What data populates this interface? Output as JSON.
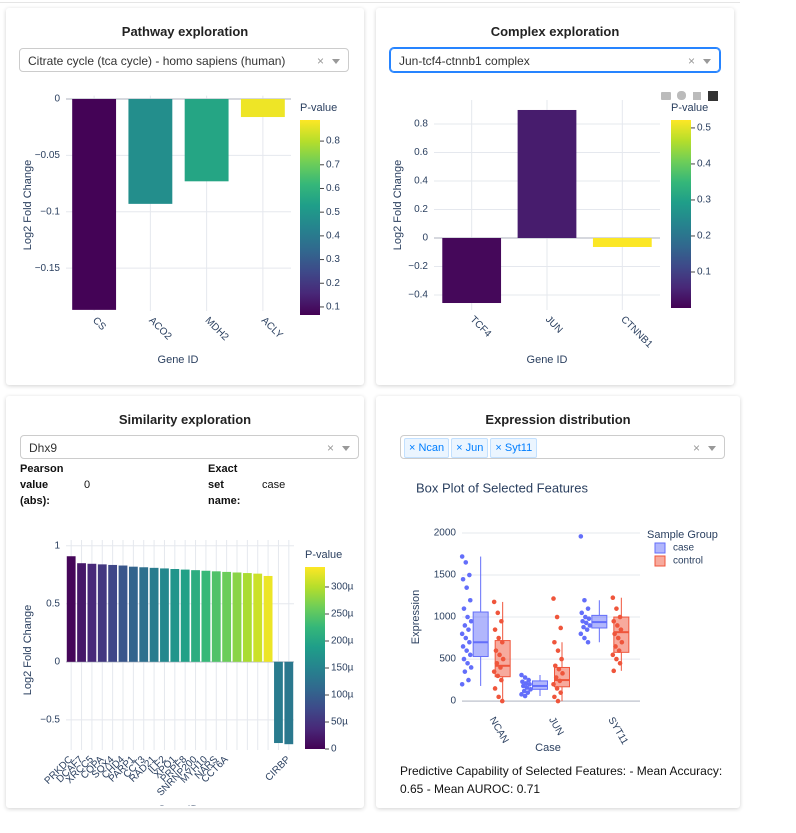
{
  "ui": {
    "panels": [
      {
        "title": "Pathway exploration",
        "dropdown": "Citrate cycle (tca cycle) - homo sapiens (human)"
      },
      {
        "title": "Complex exploration",
        "dropdown": "Jun-tcf4-ctnnb1 complex"
      },
      {
        "title": "Similarity exploration",
        "dropdown": "Dhx9",
        "fields": [
          {
            "label": "Pearson value (abs):",
            "value": 0
          },
          {
            "label": "Exact set name:",
            "value": "case"
          }
        ]
      },
      {
        "title": "Expression distribution",
        "tags": [
          "Ncan",
          "Jun",
          "Syt11"
        ],
        "footer": "Predictive Capability of Selected Features: - Mean Accuracy: 0.65 - Mean AUROC: 0.71"
      }
    ]
  },
  "chart_data": [
    {
      "type": "bar",
      "xlabel": "Gene ID",
      "ylabel": "Log2 Fold Change",
      "categories": [
        "CS",
        "ACO2",
        "MDH2",
        "ACLY"
      ],
      "values": [
        -0.187,
        -0.093,
        -0.073,
        -0.016
      ],
      "pvalues": [
        0.07,
        0.47,
        0.55,
        0.87
      ],
      "ylim": [
        -0.188,
        0.003
      ],
      "yticks": [
        0,
        {
          "value": -0.05,
          "label": "−0.05"
        },
        {
          "value": -0.1,
          "label": "−0.1"
        },
        {
          "value": -0.15,
          "label": "−0.15"
        }
      ],
      "grid": true,
      "colorscale": "Viridis",
      "colorbar": {
        "title": "P-value",
        "clim": [
          0.066,
          0.889
        ],
        "ticks": [
          0.1,
          0.2,
          0.3,
          0.4,
          0.5,
          0.6,
          0.7,
          0.8
        ]
      }
    },
    {
      "type": "bar",
      "xlabel": "Gene ID",
      "ylabel": "Log2 Fold Change",
      "categories": [
        "TCF4",
        "JUN",
        "CTNNB1"
      ],
      "values": [
        -0.456,
        0.898,
        -0.063
      ],
      "pvalues": [
        0.01,
        0.04,
        0.52
      ],
      "ylim": [
        -0.505,
        0.968
      ],
      "yticks": [
        {
          "value": -0.4,
          "label": "−0.4"
        },
        {
          "value": -0.2,
          "label": "−0.2"
        },
        0,
        0.2,
        0.4,
        0.6,
        0.8
      ],
      "grid": true,
      "colorscale": "Viridis",
      "colorbar": {
        "title": "P-value",
        "clim": [
          0,
          0.522
        ],
        "ticks": [
          0.1,
          0.2,
          0.3,
          0.4,
          0.5
        ]
      }
    },
    {
      "type": "bar",
      "xlabel": "Gene ID",
      "ylabel": "Log2 Fold Change",
      "categories": [
        "PRKDC",
        "DCAF7",
        "XRCC5",
        "COPA",
        "SOX4",
        "CHD4",
        "PARP1",
        "CCT3",
        "RAD21",
        "ILF2",
        "XPO1",
        "PRPF8",
        "SNRNP200",
        "MYH10",
        "NARS",
        "CCT6A",
        null,
        null,
        null,
        null,
        null,
        "CIRBP"
      ],
      "values": [
        0.91,
        0.85,
        0.845,
        0.84,
        0.835,
        0.83,
        0.82,
        0.815,
        0.81,
        0.805,
        0.8,
        0.795,
        0.79,
        0.785,
        0.78,
        0.775,
        0.77,
        0.765,
        0.76,
        0.74,
        -0.7,
        -0.71
      ],
      "pvalues": [
        5e-06,
        2.2e-05,
        3.9e-05,
        5.6e-05,
        7.3e-05,
        9e-05,
        0.000107,
        0.000124,
        0.000141,
        0.000158,
        0.000175,
        0.000192,
        0.000209,
        0.000226,
        0.000243,
        0.00026,
        0.000277,
        0.000294,
        0.000311,
        0.000328,
        0.00014,
        0.000135
      ],
      "ylim": [
        -0.76,
        1.05
      ],
      "yticks": [
        {
          "value": -0.5,
          "label": "−0.5"
        },
        0,
        0.5,
        1
      ],
      "grid": true,
      "colorscale": "Viridis",
      "colorbar": {
        "title": "P-value",
        "clim": [
          0,
          0.000337
        ],
        "ticks": [
          0,
          {
            "value": 5e-05,
            "label": "50µ"
          },
          {
            "value": 0.0001,
            "label": "100µ"
          },
          {
            "value": 0.00015,
            "label": "150µ"
          },
          {
            "value": 0.0002,
            "label": "200µ"
          },
          {
            "value": 0.00025,
            "label": "250µ"
          },
          {
            "value": 0.0003,
            "label": "300µ"
          }
        ]
      }
    },
    {
      "type": "box",
      "title": "Box Plot of Selected Features",
      "xlabel": "Case",
      "ylabel": "Expression",
      "legend_title": "Sample Group",
      "categories": [
        "NCAN",
        "JUN",
        "SYT11"
      ],
      "ylim": [
        -130,
        2155
      ],
      "yticks": [
        0,
        500,
        1000,
        1500,
        2000
      ],
      "grid": true,
      "series": [
        {
          "name": "case",
          "color": "#636efa",
          "lowerfence": [
            180,
            60,
            700
          ],
          "q1": [
            530,
            140,
            870
          ],
          "median": [
            700,
            180,
            940
          ],
          "q3": [
            1060,
            240,
            1020
          ],
          "upperfence": [
            1720,
            310,
            1200
          ],
          "points": [
            [
              1720,
              1650,
              1500,
              1450,
              1350,
              1200,
              1100,
              1000,
              950,
              900,
              850,
              800,
              750,
              700,
              650,
              600,
              550,
              500,
              450,
              400,
              350,
              250,
              200
            ],
            [
              310,
              280,
              250,
              230,
              210,
              200,
              180,
              160,
              140,
              120,
              100,
              80,
              60
            ],
            [
              1960,
              1200,
              1100,
              1050,
              1000,
              980,
              950,
              930,
              900,
              880,
              850,
              800,
              750,
              700
            ]
          ]
        },
        {
          "name": "control",
          "color": "#ef553b",
          "lowerfence": [
            0,
            0,
            360
          ],
          "q1": [
            290,
            170,
            580
          ],
          "median": [
            420,
            250,
            820
          ],
          "q3": [
            720,
            400,
            1000
          ],
          "upperfence": [
            1180,
            700,
            1230
          ],
          "points": [
            [
              1180,
              1050,
              950,
              850,
              750,
              700,
              600,
              550,
              500,
              450,
              400,
              350,
              300,
              250,
              150,
              50,
              0
            ],
            [
              1220,
              1000,
              870,
              700,
              600,
              500,
              420,
              380,
              330,
              280,
              240,
              200,
              150,
              100,
              50,
              0
            ],
            [
              1230,
              1100,
              1000,
              950,
              900,
              850,
              800,
              750,
              700,
              650,
              600,
              550,
              500,
              450,
              360
            ]
          ]
        }
      ]
    }
  ]
}
